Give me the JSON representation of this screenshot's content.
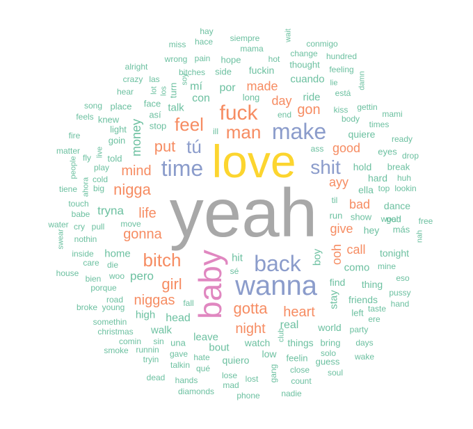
{
  "palette": {
    "grey": "#a8a8a8",
    "yellow": "#fcd52f",
    "purple": "#8b9ccb",
    "orange": "#f68c62",
    "pink": "#e087c0",
    "teal": "#6cc0a0"
  },
  "words": [
    {
      "text": "yeah",
      "color": "grey"
    },
    {
      "text": "love",
      "color": "yellow"
    },
    {
      "text": "baby",
      "color": "pink"
    },
    {
      "text": "wanna",
      "color": "purple"
    },
    {
      "text": "back",
      "color": "purple"
    },
    {
      "text": "make",
      "color": "purple"
    },
    {
      "text": "time",
      "color": "purple"
    },
    {
      "text": "shit",
      "color": "purple"
    },
    {
      "text": "fuck",
      "color": "orange"
    },
    {
      "text": "feel",
      "color": "orange"
    },
    {
      "text": "man",
      "color": "orange"
    },
    {
      "text": "bitch",
      "color": "orange"
    },
    {
      "text": "tú",
      "color": "purple"
    },
    {
      "text": "put",
      "color": "orange"
    },
    {
      "text": "nigga",
      "color": "orange"
    },
    {
      "text": "mind",
      "color": "orange"
    },
    {
      "text": "gotta",
      "color": "orange"
    },
    {
      "text": "heart",
      "color": "orange"
    },
    {
      "text": "girl",
      "color": "orange"
    },
    {
      "text": "niggas",
      "color": "orange"
    },
    {
      "text": "life",
      "color": "orange"
    },
    {
      "text": "gonna",
      "color": "orange"
    },
    {
      "text": "night",
      "color": "orange"
    },
    {
      "text": "made",
      "color": "orange"
    },
    {
      "text": "day",
      "color": "orange"
    },
    {
      "text": "gon",
      "color": "orange"
    },
    {
      "text": "good",
      "color": "orange"
    },
    {
      "text": "bad",
      "color": "orange"
    },
    {
      "text": "give",
      "color": "orange"
    },
    {
      "text": "call",
      "color": "orange"
    },
    {
      "text": "ooh",
      "color": "orange"
    },
    {
      "text": "ayy",
      "color": "orange"
    },
    {
      "text": "money",
      "color": "teal"
    },
    {
      "text": "por",
      "color": "teal"
    },
    {
      "text": "con",
      "color": "teal"
    },
    {
      "text": "ride",
      "color": "teal"
    },
    {
      "text": "cuando",
      "color": "teal"
    },
    {
      "text": "fuckin",
      "color": "teal"
    },
    {
      "text": "talk",
      "color": "teal"
    },
    {
      "text": "mí",
      "color": "teal"
    },
    {
      "text": "pero",
      "color": "teal"
    },
    {
      "text": "tryna",
      "color": "teal"
    },
    {
      "text": "hit",
      "color": "teal"
    },
    {
      "text": "home",
      "color": "teal"
    },
    {
      "text": "real",
      "color": "teal"
    },
    {
      "text": "como",
      "color": "teal"
    },
    {
      "text": "stay",
      "color": "teal"
    },
    {
      "text": "boy",
      "color": "teal"
    },
    {
      "text": "head",
      "color": "teal"
    },
    {
      "text": "walk",
      "color": "teal"
    },
    {
      "text": "high",
      "color": "teal"
    },
    {
      "text": "leave",
      "color": "teal"
    },
    {
      "text": "bout",
      "color": "teal"
    },
    {
      "text": "quiero",
      "color": "teal"
    },
    {
      "text": "watch",
      "color": "teal"
    },
    {
      "text": "low",
      "color": "teal"
    },
    {
      "text": "things",
      "color": "teal"
    },
    {
      "text": "world",
      "color": "teal"
    },
    {
      "text": "find",
      "color": "teal"
    },
    {
      "text": "thing",
      "color": "teal"
    },
    {
      "text": "friends",
      "color": "teal"
    },
    {
      "text": "dance",
      "color": "teal"
    },
    {
      "text": "hold",
      "color": "teal"
    },
    {
      "text": "hard",
      "color": "teal"
    },
    {
      "text": "quiere",
      "color": "teal"
    },
    {
      "text": "ella",
      "color": "teal"
    },
    {
      "text": "run",
      "color": "teal"
    },
    {
      "text": "show",
      "color": "teal"
    },
    {
      "text": "hey",
      "color": "teal"
    },
    {
      "text": "tonight",
      "color": "teal"
    },
    {
      "text": "una",
      "color": "teal"
    },
    {
      "text": "feelin",
      "color": "teal"
    },
    {
      "text": "bring",
      "color": "teal"
    },
    {
      "text": "guess",
      "color": "teal"
    },
    {
      "text": "left",
      "color": "teal"
    },
    {
      "text": "god",
      "color": "teal"
    },
    {
      "text": "stop",
      "color": "teal"
    },
    {
      "text": "told",
      "color": "teal"
    },
    {
      "text": "goin",
      "color": "teal"
    },
    {
      "text": "light",
      "color": "teal"
    },
    {
      "text": "knew",
      "color": "teal"
    },
    {
      "text": "face",
      "color": "teal"
    },
    {
      "text": "place",
      "color": "teal"
    },
    {
      "text": "así",
      "color": "teal"
    },
    {
      "text": "turn",
      "color": "teal"
    },
    {
      "text": "hope",
      "color": "teal"
    },
    {
      "text": "side",
      "color": "teal"
    },
    {
      "text": "long",
      "color": "teal"
    },
    {
      "text": "thought",
      "color": "teal"
    },
    {
      "text": "change",
      "color": "teal"
    },
    {
      "text": "end",
      "color": "teal"
    },
    {
      "text": "kiss",
      "color": "teal"
    },
    {
      "text": "gettin",
      "color": "teal"
    },
    {
      "text": "body",
      "color": "teal"
    },
    {
      "text": "times",
      "color": "teal"
    },
    {
      "text": "eyes",
      "color": "teal"
    },
    {
      "text": "break",
      "color": "teal"
    },
    {
      "text": "lookin",
      "color": "teal"
    },
    {
      "text": "top",
      "color": "teal"
    },
    {
      "text": "woah",
      "color": "teal"
    },
    {
      "text": "más",
      "color": "teal"
    },
    {
      "text": "mine",
      "color": "teal"
    },
    {
      "text": "pussy",
      "color": "teal"
    },
    {
      "text": "hand",
      "color": "teal"
    },
    {
      "text": "taste",
      "color": "teal"
    },
    {
      "text": "ere",
      "color": "teal"
    },
    {
      "text": "party",
      "color": "teal"
    },
    {
      "text": "days",
      "color": "teal"
    },
    {
      "text": "wake",
      "color": "teal"
    },
    {
      "text": "solo",
      "color": "teal"
    },
    {
      "text": "soul",
      "color": "teal"
    },
    {
      "text": "count",
      "color": "teal"
    },
    {
      "text": "close",
      "color": "teal"
    },
    {
      "text": "nadie",
      "color": "teal"
    },
    {
      "text": "phone",
      "color": "teal"
    },
    {
      "text": "lost",
      "color": "teal"
    },
    {
      "text": "mad",
      "color": "teal"
    },
    {
      "text": "lose",
      "color": "teal"
    },
    {
      "text": "gang",
      "color": "teal"
    },
    {
      "text": "club",
      "color": "teal"
    },
    {
      "text": "qué",
      "color": "teal"
    },
    {
      "text": "hate",
      "color": "teal"
    },
    {
      "text": "gave",
      "color": "teal"
    },
    {
      "text": "talkin",
      "color": "teal"
    },
    {
      "text": "hands",
      "color": "teal"
    },
    {
      "text": "diamonds",
      "color": "teal"
    },
    {
      "text": "dead",
      "color": "teal"
    },
    {
      "text": "tryin",
      "color": "teal"
    },
    {
      "text": "runnin",
      "color": "teal"
    },
    {
      "text": "smoke",
      "color": "teal"
    },
    {
      "text": "comin",
      "color": "teal"
    },
    {
      "text": "sin",
      "color": "teal"
    },
    {
      "text": "christmas",
      "color": "teal"
    },
    {
      "text": "somethin",
      "color": "teal"
    },
    {
      "text": "broke",
      "color": "teal"
    },
    {
      "text": "young",
      "color": "teal"
    },
    {
      "text": "road",
      "color": "teal"
    },
    {
      "text": "porque",
      "color": "teal"
    },
    {
      "text": "bien",
      "color": "teal"
    },
    {
      "text": "house",
      "color": "teal"
    },
    {
      "text": "care",
      "color": "teal"
    },
    {
      "text": "inside",
      "color": "teal"
    },
    {
      "text": "nothin",
      "color": "teal"
    },
    {
      "text": "swear",
      "color": "teal"
    },
    {
      "text": "water",
      "color": "teal"
    },
    {
      "text": "cry",
      "color": "teal"
    },
    {
      "text": "pull",
      "color": "teal"
    },
    {
      "text": "move",
      "color": "teal"
    },
    {
      "text": "babe",
      "color": "teal"
    },
    {
      "text": "touch",
      "color": "teal"
    },
    {
      "text": "tiene",
      "color": "teal"
    },
    {
      "text": "big",
      "color": "teal"
    },
    {
      "text": "ahora",
      "color": "teal"
    },
    {
      "text": "play",
      "color": "teal"
    },
    {
      "text": "fly",
      "color": "teal"
    },
    {
      "text": "live",
      "color": "teal"
    },
    {
      "text": "people",
      "color": "teal"
    },
    {
      "text": "matter",
      "color": "teal"
    },
    {
      "text": "fire",
      "color": "teal"
    },
    {
      "text": "feels",
      "color": "teal"
    },
    {
      "text": "song",
      "color": "teal"
    },
    {
      "text": "hear",
      "color": "teal"
    },
    {
      "text": "crazy",
      "color": "teal"
    },
    {
      "text": "las",
      "color": "teal"
    },
    {
      "text": "alright",
      "color": "teal"
    },
    {
      "text": "lot",
      "color": "teal"
    },
    {
      "text": "los",
      "color": "teal"
    },
    {
      "text": "soy",
      "color": "teal"
    },
    {
      "text": "bitches",
      "color": "teal"
    },
    {
      "text": "wrong",
      "color": "teal"
    },
    {
      "text": "pain",
      "color": "teal"
    },
    {
      "text": "miss",
      "color": "teal"
    },
    {
      "text": "hace",
      "color": "teal"
    },
    {
      "text": "hay",
      "color": "teal"
    },
    {
      "text": "siempre",
      "color": "teal"
    },
    {
      "text": "mama",
      "color": "teal"
    },
    {
      "text": "wait",
      "color": "teal"
    },
    {
      "text": "conmigo",
      "color": "teal"
    },
    {
      "text": "hundred",
      "color": "teal"
    },
    {
      "text": "hot",
      "color": "teal"
    },
    {
      "text": "feeling",
      "color": "teal"
    },
    {
      "text": "lie",
      "color": "teal"
    },
    {
      "text": "damn",
      "color": "teal"
    },
    {
      "text": "está",
      "color": "teal"
    },
    {
      "text": "mami",
      "color": "teal"
    },
    {
      "text": "ready",
      "color": "teal"
    },
    {
      "text": "drop",
      "color": "teal"
    },
    {
      "text": "huh",
      "color": "teal"
    },
    {
      "text": "free",
      "color": "teal"
    },
    {
      "text": "nah",
      "color": "teal"
    },
    {
      "text": "eso",
      "color": "teal"
    },
    {
      "text": "die",
      "color": "teal"
    },
    {
      "text": "woo",
      "color": "teal"
    },
    {
      "text": "fall",
      "color": "teal"
    },
    {
      "text": "sé",
      "color": "teal"
    },
    {
      "text": "ass",
      "color": "teal"
    },
    {
      "text": "til",
      "color": "teal"
    },
    {
      "text": "cold",
      "color": "teal"
    },
    {
      "text": "ill",
      "color": "teal"
    }
  ]
}
